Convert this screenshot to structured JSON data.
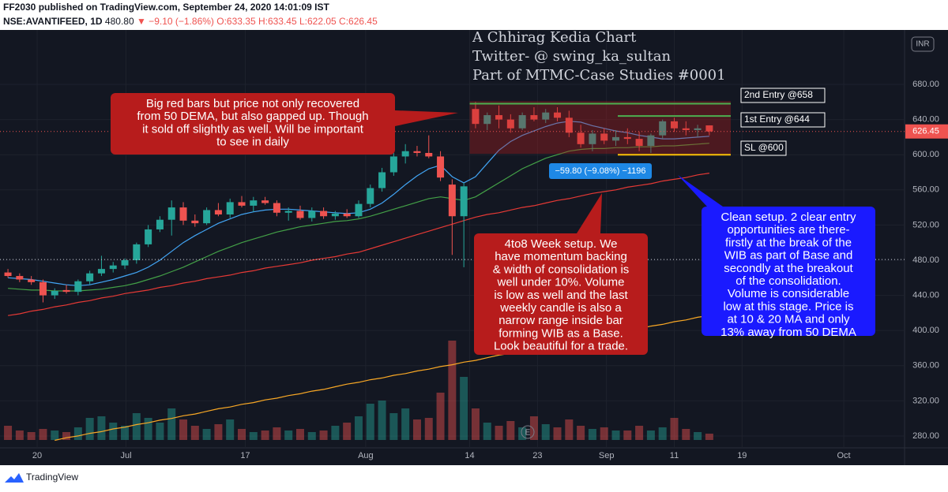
{
  "header": {
    "publisher": "FF2030 published on TradingView.com, September 24, 2020 14:01:09 IST",
    "symbol": "NSE:AVANTIFEED, 1D",
    "ref_price": "480.80",
    "change": "▼ −9.10 (−1.86%)",
    "ohlc": "O:633.35 H:633.45 L:622.05 C:626.45"
  },
  "footer": {
    "brand": "TradingView"
  },
  "chart_data": {
    "type": "candlestick",
    "watermark": [
      "A Chhirag Kedia Chart",
      "Twitter- @ swing_ka_sultan",
      "Part of MTMC-Case Studies #0001"
    ],
    "currency": "INR",
    "xlim": [
      -0.68,
      76.7
    ],
    "xticks": [
      {
        "value": 2.5,
        "label": "20"
      },
      {
        "value": 10.1,
        "label": "Jul"
      },
      {
        "value": 20.3,
        "label": "17"
      },
      {
        "value": 30.6,
        "label": "Aug"
      },
      {
        "value": 39.5,
        "label": "14"
      },
      {
        "value": 45.3,
        "label": "23"
      },
      {
        "value": 51.2,
        "label": "Sep"
      },
      {
        "value": 57,
        "label": "11"
      },
      {
        "value": 62.8,
        "label": "19"
      },
      {
        "value": 71.5,
        "label": "Oct"
      }
    ],
    "ylim": [
      266.5,
      741.9
    ],
    "yticks": [
      {
        "value": 280,
        "label": "280.00"
      },
      {
        "value": 320,
        "label": "320.00"
      },
      {
        "value": 360,
        "label": "360.00"
      },
      {
        "value": 400,
        "label": "400.00"
      },
      {
        "value": 440,
        "label": "440.00"
      },
      {
        "value": 480,
        "label": "480.00"
      },
      {
        "value": 520,
        "label": "520.00"
      },
      {
        "value": 560,
        "label": "560.00"
      },
      {
        "value": 600,
        "label": "600.00"
      },
      {
        "value": 640,
        "label": "640.00"
      },
      {
        "value": 680,
        "label": "680.00"
      }
    ],
    "grid": true,
    "up_color": "#26a69a",
    "down_color": "#ef5350",
    "ohlc": [
      [
        466,
        470,
        460,
        462
      ],
      [
        462,
        465,
        455,
        458
      ],
      [
        458,
        462,
        452,
        455
      ],
      [
        455,
        458,
        432,
        440
      ],
      [
        440,
        448,
        436,
        445
      ],
      [
        446,
        452,
        442,
        444
      ],
      [
        444,
        458,
        440,
        456
      ],
      [
        456,
        468,
        452,
        465
      ],
      [
        465,
        485,
        462,
        470
      ],
      [
        470,
        478,
        466,
        474
      ],
      [
        474,
        482,
        470,
        480
      ],
      [
        480,
        500,
        476,
        498
      ],
      [
        498,
        520,
        495,
        515
      ],
      [
        515,
        530,
        512,
        526
      ],
      [
        526,
        548,
        508,
        540
      ],
      [
        540,
        546,
        520,
        525
      ],
      [
        525,
        532,
        518,
        522
      ],
      [
        522,
        540,
        520,
        537
      ],
      [
        537,
        545,
        530,
        532
      ],
      [
        532,
        550,
        528,
        546
      ],
      [
        546,
        553,
        540,
        542
      ],
      [
        542,
        552,
        535,
        548
      ],
      [
        548,
        552,
        543,
        545
      ],
      [
        545,
        548,
        530,
        534
      ],
      [
        534,
        540,
        525,
        536
      ],
      [
        536,
        542,
        526,
        528
      ],
      [
        528,
        540,
        524,
        536
      ],
      [
        536,
        540,
        527,
        530
      ],
      [
        530,
        536,
        526,
        533
      ],
      [
        533,
        538,
        528,
        530
      ],
      [
        530,
        548,
        528,
        544
      ],
      [
        544,
        566,
        540,
        562
      ],
      [
        562,
        585,
        558,
        580
      ],
      [
        580,
        602,
        576,
        598
      ],
      [
        598,
        612,
        590,
        604
      ],
      [
        604,
        610,
        598,
        602
      ],
      [
        602,
        622,
        596,
        598
      ],
      [
        598,
        604,
        570,
        574
      ],
      [
        566,
        572,
        486,
        530
      ],
      [
        530,
        568,
        472,
        564
      ],
      [
        652,
        660,
        630,
        635
      ],
      [
        635,
        648,
        628,
        645
      ],
      [
        645,
        656,
        630,
        640
      ],
      [
        640,
        646,
        625,
        630
      ],
      [
        630,
        648,
        628,
        645
      ],
      [
        645,
        654,
        638,
        640
      ],
      [
        640,
        652,
        636,
        648
      ],
      [
        648,
        654,
        638,
        642
      ],
      [
        642,
        650,
        620,
        625
      ],
      [
        625,
        634,
        608,
        612
      ],
      [
        612,
        628,
        604,
        624
      ],
      [
        624,
        630,
        612,
        616
      ],
      [
        616,
        628,
        610,
        620
      ],
      [
        620,
        630,
        612,
        618
      ],
      [
        618,
        626,
        604,
        610
      ],
      [
        610,
        624,
        602,
        622
      ],
      [
        622,
        640,
        618,
        638
      ],
      [
        638,
        642,
        626,
        630
      ],
      [
        630,
        638,
        622,
        628
      ],
      [
        628,
        634,
        620,
        630
      ],
      [
        633.35,
        633.45,
        622.05,
        626.45
      ]
    ],
    "volume_ylim": [
      0,
      130
    ],
    "volume": [
      18,
      12,
      10,
      14,
      12,
      10,
      16,
      28,
      30,
      22,
      18,
      34,
      28,
      22,
      40,
      26,
      18,
      14,
      20,
      26,
      14,
      10,
      12,
      16,
      12,
      14,
      10,
      12,
      18,
      22,
      30,
      46,
      50,
      34,
      40,
      26,
      28,
      60,
      126,
      80,
      40,
      22,
      18,
      24,
      16,
      30,
      20,
      16,
      26,
      18,
      14,
      16,
      12,
      12,
      18,
      12,
      16,
      28,
      14,
      10,
      8
    ],
    "lines": [
      {
        "color": "#42a5f5",
        "values": [
          460,
          459,
          458,
          456,
          454,
          452,
          451,
          452,
          455,
          458,
          462,
          466,
          472,
          480,
          490,
          500,
          508,
          515,
          522,
          527,
          532,
          535,
          537,
          538,
          538,
          537,
          536,
          535,
          534,
          533,
          534,
          538,
          545,
          555,
          566,
          576,
          584,
          588,
          575,
          568,
          575,
          590,
          605,
          615,
          622,
          627,
          632,
          636,
          638,
          637,
          633,
          630,
          627,
          625,
          622,
          620,
          618,
          618,
          619,
          620,
          621
        ]
      },
      {
        "color": "#43a047",
        "values": [
          448,
          447,
          446,
          446,
          445,
          445,
          445,
          446,
          447,
          449,
          451,
          454,
          458,
          462,
          467,
          472,
          478,
          484,
          490,
          495,
          500,
          504,
          508,
          512,
          515,
          518,
          520,
          522,
          524,
          525,
          527,
          530,
          534,
          538,
          542,
          546,
          550,
          552,
          550,
          548,
          552,
          560,
          568,
          576,
          584,
          590,
          596,
          600,
          604,
          606,
          607,
          607,
          608,
          608,
          609,
          609,
          610,
          610,
          611,
          612,
          613
        ]
      },
      {
        "color": "#e53935",
        "values": [
          417,
          419,
          422,
          424,
          427,
          429,
          432,
          434,
          437,
          439,
          442,
          444,
          446,
          449,
          451,
          454,
          456,
          459,
          461,
          463,
          466,
          468,
          471,
          473,
          475,
          477,
          480,
          482,
          484,
          487,
          489,
          493,
          497,
          501,
          505,
          509,
          513,
          517,
          521,
          525,
          529,
          532,
          534,
          537,
          540,
          542,
          545,
          548,
          550,
          553,
          556,
          558,
          560,
          563,
          565,
          567,
          570,
          572,
          574,
          577,
          579
        ]
      },
      {
        "color": "#f9a825",
        "values": [
          null,
          null,
          null,
          null,
          275,
          278,
          280,
          283,
          285,
          288,
          290,
          293,
          295,
          298,
          300,
          303,
          305,
          308,
          311,
          313,
          316,
          318,
          321,
          323,
          326,
          328,
          331,
          333,
          336,
          339,
          341,
          344,
          346,
          349,
          351,
          354,
          356,
          359,
          361,
          364,
          366,
          369,
          372,
          374,
          377,
          379,
          382,
          384,
          387,
          389,
          392,
          394,
          397,
          399,
          402,
          405,
          407,
          410,
          412,
          415,
          417
        ]
      }
    ],
    "zone": {
      "high": 661,
      "low": 601
    },
    "levels": [
      {
        "label": "2nd Entry @658",
        "value": 658,
        "color": "#4caf50"
      },
      {
        "label": "1st Entry @644",
        "value": 644,
        "color": "#4caf50"
      },
      {
        "label": "SL @600",
        "value": 600,
        "color": "#ffc107"
      }
    ],
    "measure": "−59.80 (−9.08%) −1196",
    "last": {
      "value": 626.45,
      "label": "626.45"
    },
    "ref_line": 480.8,
    "earnings_marker": "E",
    "annotations": [
      {
        "color": "#b71c1c",
        "lines": [
          "Big red bars but price not only recovered",
          "from 50 DEMA, but also gapped up. Though",
          "it sold off slightly as well. Will be important",
          "to see in daily"
        ]
      },
      {
        "color": "#b71c1c",
        "lines": [
          "4to8 Week setup. We",
          "have momentum backing",
          "& width of consolidation is",
          "well under 10%. Volume",
          "is low as well and the last",
          "weekly candle is also a",
          "narrow range inside bar",
          "forming WIB as a Base.",
          "Look beautiful for a trade."
        ]
      },
      {
        "color": "#1a1aff",
        "lines": [
          "Clean setup. 2 clear entry",
          "opportunities are there-",
          "firstly at the break of the",
          "WIB as part of Base and",
          "secondly at the breakout",
          "of the consolidation.",
          "Volume is considerable",
          "low at this stage. Price is",
          "at 10 & 20 MA and only",
          "13% away from 50 DEMA"
        ]
      }
    ]
  }
}
